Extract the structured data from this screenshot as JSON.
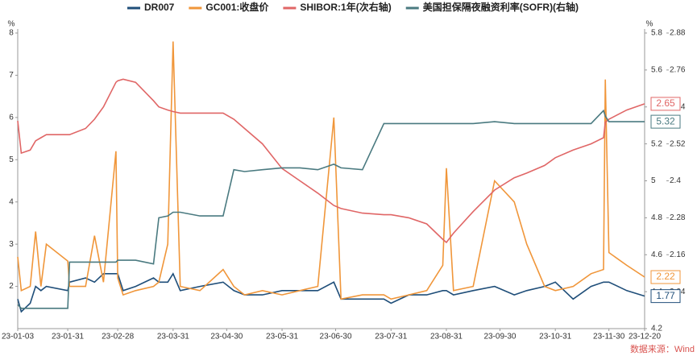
{
  "chart_data": {
    "type": "line",
    "y_unit": "%",
    "y2_unit": "%",
    "source": "数据来源：Wind",
    "x": [
      "23-01-03",
      "23-01-05",
      "23-01-10",
      "23-01-13",
      "23-01-16",
      "23-01-19",
      "23-01-31",
      "23-02-01",
      "23-02-10",
      "23-02-15",
      "23-02-20",
      "23-02-27",
      "23-02-28",
      "23-03-03",
      "23-03-10",
      "23-03-20",
      "23-03-23",
      "23-03-28",
      "23-03-31",
      "23-04-04",
      "23-04-15",
      "23-04-28",
      "23-05-04",
      "23-05-10",
      "23-05-20",
      "23-05-31",
      "23-06-10",
      "23-06-20",
      "23-06-29",
      "23-07-03",
      "23-07-15",
      "23-07-27",
      "23-07-31",
      "23-08-10",
      "23-08-20",
      "23-08-29",
      "23-08-31",
      "23-09-04",
      "23-09-15",
      "23-09-27",
      "23-10-08",
      "23-10-15",
      "23-10-25",
      "23-10-31",
      "23-11-10",
      "23-11-20",
      "23-11-27",
      "23-11-28",
      "23-11-30",
      "23-12-10",
      "23-12-20"
    ],
    "xticks": [
      "23-01-03",
      "23-01-31",
      "23-02-28",
      "23-03-31",
      "23-04-30",
      "23-05-31",
      "23-06-30",
      "23-07-31",
      "23-08-31",
      "23-09-30",
      "23-10-31",
      "23-11-30",
      "23-12-20"
    ],
    "ylim": [
      1,
      8
    ],
    "yticks": [
      2,
      3,
      4,
      5,
      6,
      7,
      8
    ],
    "y2lim": [
      4.2,
      5.8
    ],
    "y2ticks": [
      4.2,
      4.4,
      4.6,
      4.8,
      5,
      5.2,
      5.4,
      5.6,
      5.8
    ],
    "y3lim": [
      1.92,
      2.88
    ],
    "y3ticks": [
      2.04,
      2.16,
      2.28,
      2.4,
      2.52,
      2.64,
      2.76,
      2.88
    ],
    "series": [
      {
        "name": "DR007",
        "color": "#1f4e79",
        "axis": "y",
        "values": [
          1.7,
          1.4,
          1.6,
          2.0,
          1.9,
          2.0,
          1.9,
          2.1,
          2.2,
          2.1,
          2.3,
          2.3,
          2.3,
          1.9,
          2.0,
          2.2,
          2.1,
          2.1,
          2.3,
          1.9,
          2.0,
          2.1,
          1.9,
          1.8,
          1.8,
          1.9,
          1.9,
          1.9,
          2.1,
          1.7,
          1.7,
          1.7,
          1.6,
          1.8,
          1.8,
          1.9,
          1.9,
          1.8,
          1.9,
          2.0,
          1.8,
          1.9,
          2.0,
          2.1,
          1.7,
          2.0,
          2.1,
          2.1,
          2.1,
          1.9,
          1.77
        ]
      },
      {
        "name": "GC001:收盘价",
        "color": "#f0963a",
        "axis": "y",
        "values": [
          2.7,
          1.9,
          2.0,
          3.3,
          2.0,
          3.0,
          2.6,
          2.0,
          2.0,
          3.2,
          2.1,
          5.2,
          2.2,
          1.8,
          1.9,
          2.0,
          2.1,
          3.0,
          7.8,
          2.0,
          1.9,
          2.4,
          2.0,
          1.8,
          1.9,
          1.8,
          1.9,
          2.0,
          6.0,
          1.7,
          1.8,
          1.8,
          1.7,
          1.8,
          1.9,
          2.5,
          4.8,
          1.9,
          2.0,
          4.5,
          4.0,
          3.0,
          2.0,
          1.9,
          2.0,
          2.3,
          2.4,
          6.9,
          2.8,
          2.5,
          2.22
        ]
      },
      {
        "name": "SHIBOR:1年(次右轴)",
        "color": "#e06666",
        "axis": "y3",
        "values": [
          2.595,
          2.49,
          2.5,
          2.53,
          2.54,
          2.55,
          2.55,
          2.55,
          2.57,
          2.6,
          2.64,
          2.72,
          2.725,
          2.73,
          2.72,
          2.66,
          2.64,
          2.63,
          2.625,
          2.62,
          2.62,
          2.62,
          2.6,
          2.57,
          2.52,
          2.44,
          2.4,
          2.36,
          2.32,
          2.31,
          2.295,
          2.29,
          2.29,
          2.28,
          2.26,
          2.21,
          2.2,
          2.23,
          2.3,
          2.37,
          2.41,
          2.425,
          2.45,
          2.475,
          2.5,
          2.52,
          2.54,
          2.59,
          2.6,
          2.63,
          2.65
        ]
      },
      {
        "name": "美国担保隔夜融资利率(SOFR)(右轴)",
        "color": "#4a7a80",
        "axis": "y2",
        "values": [
          4.33,
          4.31,
          4.31,
          4.31,
          4.31,
          4.31,
          4.31,
          4.56,
          4.56,
          4.56,
          4.56,
          4.56,
          4.57,
          4.57,
          4.57,
          4.55,
          4.8,
          4.81,
          4.83,
          4.83,
          4.81,
          4.81,
          5.06,
          5.05,
          5.06,
          5.07,
          5.07,
          5.06,
          5.09,
          5.07,
          5.06,
          5.31,
          5.31,
          5.31,
          5.31,
          5.31,
          5.31,
          5.31,
          5.31,
          5.32,
          5.31,
          5.31,
          5.31,
          5.31,
          5.31,
          5.31,
          5.38,
          5.35,
          5.32,
          5.32,
          5.32
        ]
      }
    ]
  }
}
